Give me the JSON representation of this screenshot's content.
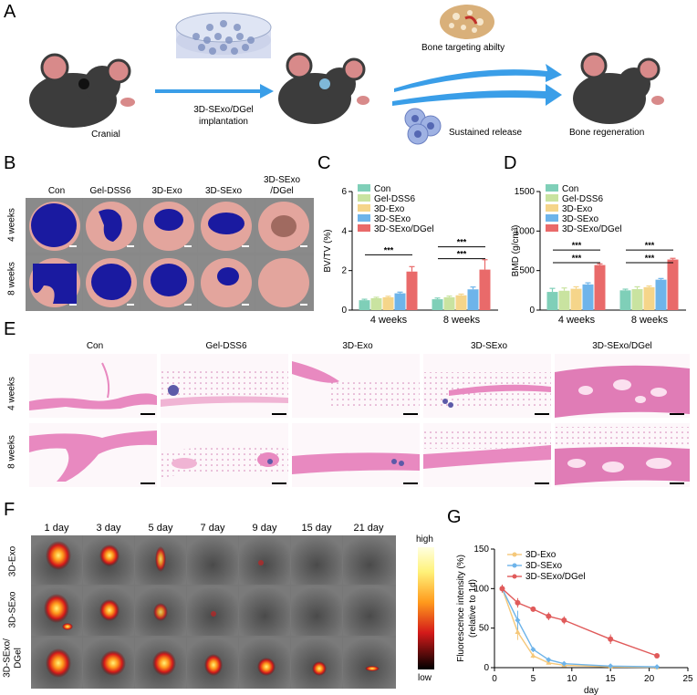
{
  "panelA": {
    "label": "A",
    "cranial": "Cranial",
    "implant_line1": "3D-SExo/DGel",
    "implant_line2": "implantation",
    "bone_targeting": "Bone targeting abilty",
    "sustained": "Sustained release",
    "regeneration": "Bone regeneration"
  },
  "panelB": {
    "label": "B",
    "columns": [
      "Con",
      "Gel-DSS6",
      "3D-Exo",
      "3D-SExo",
      "3D-SExo",
      "/DGel"
    ],
    "rows": [
      "4 weeks",
      "8 weeks"
    ]
  },
  "panelE": {
    "label": "E",
    "columns": [
      "Con",
      "Gel-DSS6",
      "3D-Exo",
      "3D-SExo",
      "3D-SExo/DGel"
    ],
    "rows": [
      "4 weeks",
      "8 weeks"
    ]
  },
  "panelF": {
    "label": "F",
    "days": [
      "1 day",
      "3 day",
      "5 day",
      "7 day",
      "9 day",
      "15 day",
      "21 day"
    ],
    "rows": [
      "3D-Exo",
      "3D-SExo",
      "3D-SExo/",
      "DGel"
    ],
    "scale_high": "high",
    "scale_low": "low"
  },
  "colors": {
    "con": "#7fcfb8",
    "gel": "#c9e3a0",
    "exo": "#f5d58a",
    "sexo": "#6eb4ea",
    "dgel": "#e96a6a",
    "bone_pink": "#e9a6a2",
    "defect_blue": "#1a1aa0",
    "he_pink": "#e889c0",
    "arrow_blue": "#3a9ee8"
  },
  "chart_data": [
    {
      "panel": "C",
      "type": "bar",
      "ylabel": "BV/TV (%)",
      "ylim": [
        0,
        6
      ],
      "yticks": [
        "0",
        "2",
        "4",
        "6"
      ],
      "categories": [
        "4 weeks",
        "8 weeks"
      ],
      "series": [
        {
          "name": "Con",
          "values": [
            0.5,
            0.55
          ],
          "errors": [
            0.05,
            0.06
          ]
        },
        {
          "name": "Gel-DSS6",
          "values": [
            0.6,
            0.65
          ],
          "errors": [
            0.05,
            0.06
          ]
        },
        {
          "name": "3D-Exo",
          "values": [
            0.65,
            0.75
          ],
          "errors": [
            0.05,
            0.06
          ]
        },
        {
          "name": "3D-SExo",
          "values": [
            0.85,
            1.05
          ],
          "errors": [
            0.06,
            0.12
          ]
        },
        {
          "name": "3D-SExo/DGel",
          "values": [
            1.95,
            2.05
          ],
          "errors": [
            0.25,
            0.5
          ]
        }
      ],
      "significance": [
        "***",
        "***",
        "***"
      ]
    },
    {
      "panel": "D",
      "type": "bar",
      "ylabel": "BMD (g/cm³)",
      "ylim": [
        0,
        1500
      ],
      "yticks": [
        "0",
        "500",
        "1000",
        "1500"
      ],
      "categories": [
        "4 weeks",
        "8 weeks"
      ],
      "series": [
        {
          "name": "Con",
          "values": [
            230,
            250
          ],
          "errors": [
            45,
            15
          ]
        },
        {
          "name": "Gel-DSS6",
          "values": [
            245,
            265
          ],
          "errors": [
            35,
            30
          ]
        },
        {
          "name": "3D-Exo",
          "values": [
            270,
            290
          ],
          "errors": [
            25,
            15
          ]
        },
        {
          "name": "3D-SExo",
          "values": [
            325,
            385
          ],
          "errors": [
            20,
            15
          ]
        },
        {
          "name": "3D-SExo/DGel",
          "values": [
            570,
            640
          ],
          "errors": [
            15,
            15
          ]
        }
      ],
      "significance": [
        "***",
        "***",
        "***",
        "***"
      ]
    },
    {
      "panel": "G",
      "type": "line",
      "ylabel_line1": "Fluorescence intensity (%)",
      "ylabel_line2": "(relative to 1d)",
      "xlabel": "day",
      "xlim": [
        0,
        25
      ],
      "ylim": [
        0,
        150
      ],
      "xticks": [
        "0",
        "5",
        "10",
        "15",
        "20",
        "25"
      ],
      "yticks": [
        "0",
        "50",
        "100",
        "150"
      ],
      "series": [
        {
          "name": "3D-Exo",
          "color": "#f5c87a",
          "marker": "triangle",
          "x": [
            1,
            3,
            5,
            7,
            9,
            15,
            21
          ],
          "y": [
            100,
            45,
            15,
            6,
            3,
            1,
            0.5
          ],
          "err": [
            5,
            10,
            3,
            2,
            1,
            1,
            0.5
          ]
        },
        {
          "name": "3D-SExo",
          "color": "#6eb4ea",
          "marker": "diamond",
          "x": [
            1,
            3,
            5,
            7,
            9,
            15,
            21
          ],
          "y": [
            100,
            60,
            23,
            10,
            5,
            2,
            1
          ],
          "err": [
            5,
            12,
            3,
            2,
            1,
            1,
            0.5
          ]
        },
        {
          "name": "3D-SExo/DGel",
          "color": "#e05a5a",
          "marker": "circle",
          "x": [
            1,
            3,
            5,
            7,
            9,
            15,
            21
          ],
          "y": [
            100,
            82,
            74,
            65,
            60,
            36,
            15
          ],
          "err": [
            5,
            6,
            3,
            5,
            5,
            6,
            2
          ]
        }
      ]
    }
  ]
}
